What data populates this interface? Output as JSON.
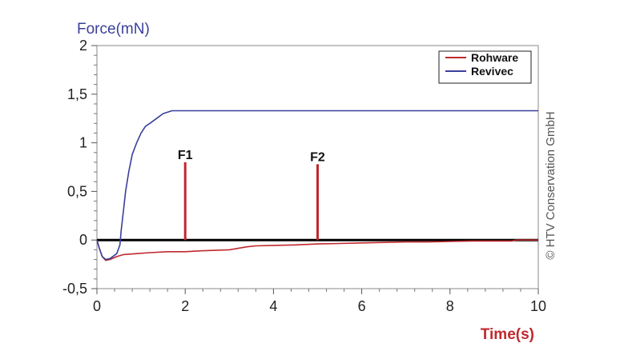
{
  "chart_data": {
    "type": "line",
    "ylabel": "Force(mN)",
    "xlabel": "Time(s)",
    "xlim": [
      0,
      10
    ],
    "ylim": [
      -0.5,
      2
    ],
    "x_ticks": [
      "0",
      "2",
      "4",
      "6",
      "8",
      "10"
    ],
    "y_ticks": [
      "-0,5",
      "0",
      "0,5",
      "1",
      "1,5",
      "2"
    ],
    "x_tick_values": [
      0,
      2,
      4,
      6,
      8,
      10
    ],
    "y_tick_values": [
      -0.5,
      0,
      0.5,
      1,
      1.5,
      2
    ],
    "legend": {
      "placement": "top-right",
      "entries": [
        "Rohware",
        "Revivec"
      ]
    },
    "series": [
      {
        "name": "Rohware",
        "color": "#c0282d",
        "points": [
          [
            0,
            0
          ],
          [
            0.05,
            -0.08
          ],
          [
            0.12,
            -0.17
          ],
          [
            0.2,
            -0.21
          ],
          [
            0.3,
            -0.2
          ],
          [
            0.45,
            -0.17
          ],
          [
            0.6,
            -0.15
          ],
          [
            0.9,
            -0.14
          ],
          [
            1.2,
            -0.13
          ],
          [
            1.6,
            -0.12
          ],
          [
            2.0,
            -0.12
          ],
          [
            2.4,
            -0.11
          ],
          [
            3.0,
            -0.1
          ],
          [
            3.4,
            -0.07
          ],
          [
            3.6,
            -0.06
          ],
          [
            4.0,
            -0.055
          ],
          [
            4.5,
            -0.05
          ],
          [
            5.0,
            -0.04
          ],
          [
            5.5,
            -0.035
          ],
          [
            6.0,
            -0.03
          ],
          [
            6.5,
            -0.025
          ],
          [
            7.0,
            -0.02
          ],
          [
            7.5,
            -0.02
          ],
          [
            8.0,
            -0.015
          ],
          [
            8.5,
            -0.01
          ],
          [
            9.0,
            -0.01
          ],
          [
            9.4,
            -0.01
          ],
          [
            9.5,
            0.0
          ],
          [
            10.0,
            0.0
          ]
        ]
      },
      {
        "name": "Revivec",
        "color": "#3a3f9a",
        "points": [
          [
            0,
            0
          ],
          [
            0.05,
            -0.08
          ],
          [
            0.12,
            -0.17
          ],
          [
            0.2,
            -0.2
          ],
          [
            0.3,
            -0.19
          ],
          [
            0.45,
            -0.14
          ],
          [
            0.52,
            -0.05
          ],
          [
            0.55,
            0.1
          ],
          [
            0.6,
            0.3
          ],
          [
            0.65,
            0.5
          ],
          [
            0.72,
            0.7
          ],
          [
            0.8,
            0.88
          ],
          [
            0.9,
            1.0
          ],
          [
            1.0,
            1.1
          ],
          [
            1.1,
            1.17
          ],
          [
            1.2,
            1.2
          ],
          [
            1.35,
            1.25
          ],
          [
            1.5,
            1.3
          ],
          [
            1.7,
            1.33
          ],
          [
            2.0,
            1.33
          ],
          [
            3.0,
            1.33
          ],
          [
            4.0,
            1.33
          ],
          [
            5.0,
            1.33
          ],
          [
            6.0,
            1.33
          ],
          [
            7.0,
            1.33
          ],
          [
            8.0,
            1.33
          ],
          [
            9.0,
            1.33
          ],
          [
            10.0,
            1.33
          ]
        ]
      }
    ],
    "markers": [
      {
        "label": "F1",
        "x": 2,
        "y_top": 0.8,
        "color": "#c0282d"
      },
      {
        "label": "F2",
        "x": 5,
        "y_top": 0.78,
        "color": "#c0282d"
      }
    ],
    "zero_line": {
      "y": 0,
      "color": "#000000"
    },
    "annotation": "© HTV Conservation GmbH",
    "grid": false
  }
}
